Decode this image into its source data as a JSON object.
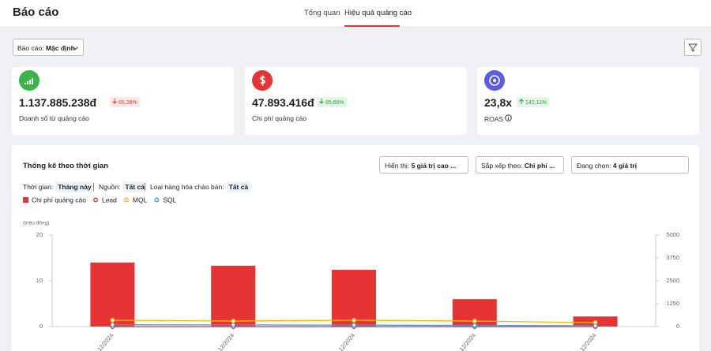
{
  "header": {
    "title": "Báo cáo",
    "tabs": [
      "Tổng quan",
      "Hiệu quả quảng cáo"
    ]
  },
  "toolbar": {
    "report_label": "Báo cáo:",
    "report_value": "Mặc định"
  },
  "cards": [
    {
      "value": "1.137.885.238đ",
      "change": "65,28%",
      "label": "Doanh số từ quảng cáo"
    },
    {
      "value": "47.893.416đ",
      "change": "85,66%",
      "label": "Chi phí quảng cáo"
    },
    {
      "value": "23,8x",
      "change": "142,11%",
      "label": "ROAS"
    }
  ],
  "panel": {
    "title": "Thống kê theo thời gian",
    "selects": [
      {
        "label": "Hiển thị:",
        "value": "5 giá trị cao ..."
      },
      {
        "label": "Sắp xếp theo:",
        "value": "Chi phí ..."
      },
      {
        "label": "Đang chọn:",
        "value": "4 giá trị"
      }
    ],
    "filters": [
      {
        "label": "Thời gian:",
        "value": "Tháng này"
      },
      {
        "label": "Nguồn:",
        "value": "Tất cả"
      },
      {
        "label": "Loại hàng hóa chào bán:",
        "value": "Tất cả"
      }
    ]
  },
  "chart_data": {
    "type": "bar_line",
    "y_label": "(triệu đồng)",
    "categories": [
      "12/2024",
      "12/2024",
      "12/2024",
      "12/2024",
      "12/2024"
    ],
    "series": [
      {
        "name": "Chi phí quảng cáo",
        "type": "bar",
        "color": "#e63333",
        "values": [
          14,
          13.3,
          12.4,
          6,
          2.2
        ]
      },
      {
        "name": "Lead",
        "type": "line",
        "color": "#e63333",
        "axis": "y2",
        "values": [
          0,
          0,
          0,
          0,
          0
        ]
      },
      {
        "name": "MQL",
        "type": "line",
        "color": "#f5b800",
        "axis": "y2",
        "values": [
          345,
          300,
          345,
          300,
          215
        ]
      },
      {
        "name": "SQL",
        "type": "line",
        "color": "#3aa0e0",
        "axis": "y2",
        "values": [
          100,
          90,
          80,
          60,
          40
        ]
      }
    ],
    "ylim": [
      0,
      20
    ],
    "yticks": [
      0,
      10,
      20
    ],
    "y2lim": [
      0,
      5000
    ],
    "y2ticks": [
      0,
      1250,
      2500,
      3750,
      5000
    ]
  }
}
